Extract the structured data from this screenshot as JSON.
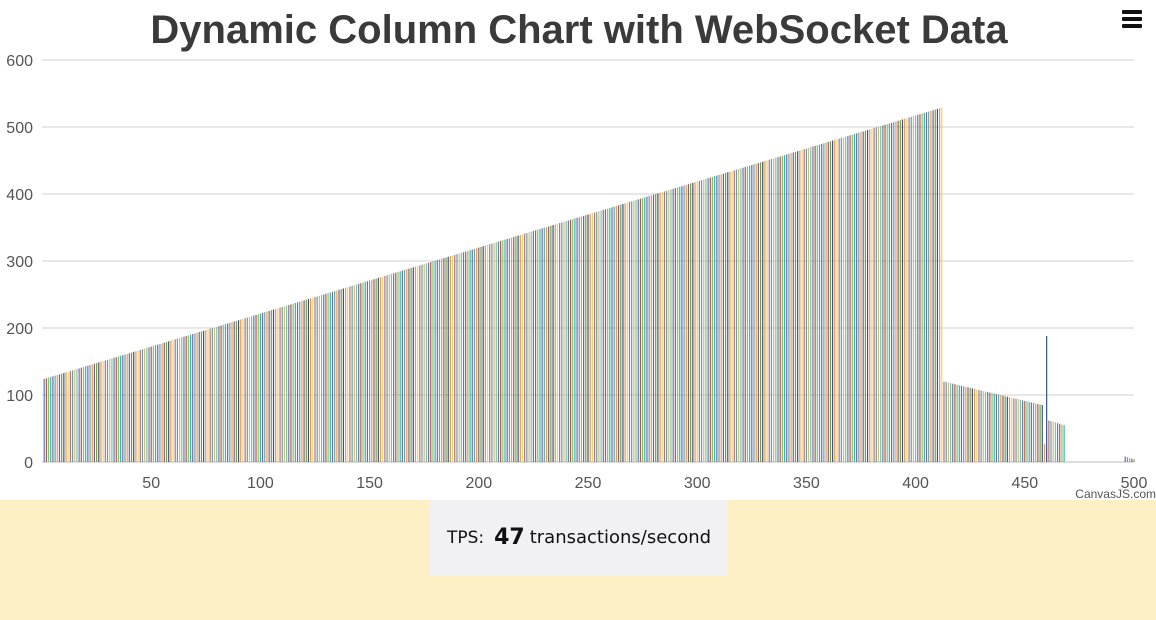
{
  "menu": {
    "icon": "hamburger-menu-icon"
  },
  "tps": {
    "label": "TPS:",
    "value": "47",
    "unit": "transactions/second"
  },
  "chart_data": {
    "type": "bar",
    "title": "Dynamic Column Chart with WebSocket Data",
    "credit": "CanvasJS.com",
    "xlabel": "",
    "ylabel": "",
    "xlim": [
      0,
      500
    ],
    "ylim": [
      0,
      600
    ],
    "x_ticks": [
      50,
      100,
      150,
      200,
      250,
      300,
      350,
      400,
      450,
      500
    ],
    "y_ticks": [
      0,
      100,
      200,
      300,
      400,
      500,
      600
    ],
    "grid": true,
    "palette": [
      "#4f81bc",
      "#c0504e",
      "#9bbb58",
      "#23bfaa",
      "#8064a1",
      "#4aacc5",
      "#f79647",
      "#7f6084",
      "#77a033",
      "#33558b",
      "#e59566",
      "#e8d95b",
      "#bd6d83",
      "#6a9e9c",
      "#d7b78c",
      "#88c48a"
    ],
    "segments": [
      {
        "x_start": 1,
        "x_end": 412,
        "y_start": 124,
        "y_end": 529
      },
      {
        "x_start": 413,
        "x_end": 458,
        "y_start": 120,
        "y_end": 85
      },
      {
        "x_start": 459,
        "x_end": 460,
        "y_start": 27,
        "y_end": 22
      },
      {
        "x_start": 461,
        "x_end": 468,
        "y_start": 62,
        "y_end": 55
      },
      {
        "x_start": 496,
        "x_end": 500,
        "y_start": 8,
        "y_end": 4
      }
    ],
    "spikes": [
      {
        "x": 460,
        "y": 188
      }
    ]
  }
}
